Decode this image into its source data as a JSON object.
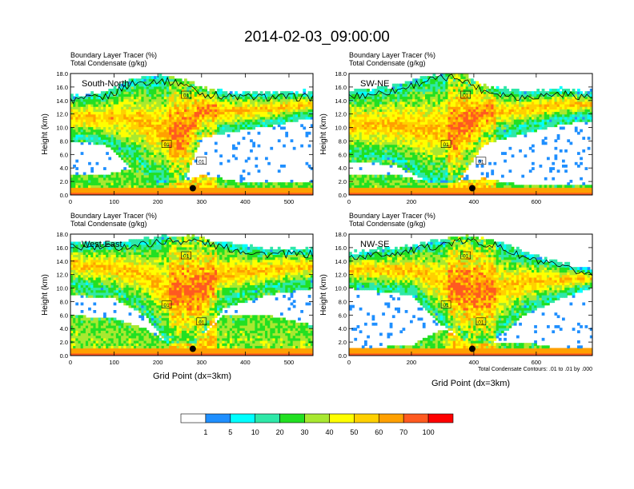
{
  "figure": {
    "title": "2014-02-03_09:00:00",
    "left_string_1": "Boundary Layer Tracer   (%)",
    "left_string_2": "Total Condensate   (g/kg)",
    "contour_note": "Total Condensate Contours: .01 to .01 by .000",
    "xlabel": "Grid Point (dx=3km)",
    "ylabel": "Height (km)",
    "contour_label": "01",
    "colorbar": {
      "labels": [
        "1",
        "5",
        "10",
        "20",
        "30",
        "40",
        "50",
        "60",
        "70",
        "100"
      ],
      "colors": [
        "#ffffff",
        "#1f8fff",
        "#00ffff",
        "#2ee8a8",
        "#22e022",
        "#a8e830",
        "#ffff00",
        "#ffd000",
        "#ffa000",
        "#ff5a20",
        "#ff0000"
      ]
    }
  },
  "chart_data": [
    {
      "type": "heatmap",
      "panel_label": "South-North",
      "xlim": [
        0,
        555
      ],
      "ylim": [
        0,
        18
      ],
      "xticks": [
        0,
        100,
        200,
        300,
        400,
        500
      ],
      "yticks": [
        "0.0",
        "2.0",
        "4.0",
        "6.0",
        "8.0",
        "10.0",
        "12.0",
        "14.0",
        "16.0",
        "18.0"
      ],
      "marker": {
        "x": 280,
        "y": 1.0
      },
      "profile": [
        {
          "x": 0,
          "top": 14.5,
          "anvil": [
            8.5,
            15.5
          ],
          "gap": [
            3.0,
            8.0
          ],
          "low": 3.0
        },
        {
          "x": 80,
          "top": 15.0,
          "anvil": [
            8.0,
            16.0
          ],
          "gap": [
            3.0,
            7.5
          ],
          "low": 3.0
        },
        {
          "x": 140,
          "top": 17.0,
          "anvil": [
            6.0,
            17.0
          ],
          "gap": [
            4.0,
            4.0
          ],
          "low": 4.0
        },
        {
          "x": 200,
          "top": 17.5,
          "anvil": [
            2.0,
            17.5
          ],
          "gap": [
            2.0,
            2.0
          ],
          "low": 2.0
        },
        {
          "x": 260,
          "top": 17.0,
          "anvil": [
            2.0,
            17.0
          ],
          "gap": [
            2.0,
            2.0
          ],
          "low": 2.0
        },
        {
          "x": 300,
          "top": 15.5,
          "anvil": [
            9.5,
            15.5
          ],
          "gap": [
            3.0,
            8.5
          ],
          "low": 3.0
        },
        {
          "x": 380,
          "top": 15.0,
          "anvil": [
            10.0,
            15.0
          ],
          "gap": [
            2.0,
            9.5
          ],
          "low": 2.0
        },
        {
          "x": 480,
          "top": 15.0,
          "anvil": [
            11.0,
            15.0
          ],
          "gap": [
            1.8,
            10.5
          ],
          "low": 1.8
        },
        {
          "x": 555,
          "top": 15.0,
          "anvil": [
            12.0,
            15.0
          ],
          "gap": [
            1.8,
            11.5
          ],
          "low": 1.8
        }
      ]
    },
    {
      "type": "heatmap",
      "panel_label": "SW-NE",
      "xlim": [
        0,
        780
      ],
      "ylim": [
        0,
        18
      ],
      "xticks": [
        0,
        200,
        400,
        600
      ],
      "yticks": [
        "0.0",
        "2.0",
        "4.0",
        "6.0",
        "8.0",
        "10.0",
        "12.0",
        "14.0",
        "16.0",
        "18.0"
      ],
      "marker": {
        "x": 395,
        "y": 1.0
      },
      "profile": [
        {
          "x": 0,
          "top": 15.0,
          "anvil": [
            6.0,
            15.0
          ],
          "gap": [
            3.0,
            5.0
          ],
          "low": 3.0
        },
        {
          "x": 150,
          "top": 16.0,
          "anvil": [
            5.0,
            16.0
          ],
          "gap": [
            3.0,
            4.5
          ],
          "low": 3.0
        },
        {
          "x": 250,
          "top": 17.5,
          "anvil": [
            2.0,
            17.5
          ],
          "gap": [
            2.0,
            2.0
          ],
          "low": 2.0
        },
        {
          "x": 350,
          "top": 18.0,
          "anvil": [
            2.0,
            18.0
          ],
          "gap": [
            2.0,
            2.0
          ],
          "low": 2.0
        },
        {
          "x": 430,
          "top": 16.0,
          "anvil": [
            8.5,
            16.0
          ],
          "gap": [
            2.5,
            7.5
          ],
          "low": 2.5
        },
        {
          "x": 550,
          "top": 15.0,
          "anvil": [
            10.0,
            15.0
          ],
          "gap": [
            1.5,
            9.0
          ],
          "low": 1.5
        },
        {
          "x": 680,
          "top": 15.5,
          "anvil": [
            11.5,
            15.5
          ],
          "gap": [
            1.5,
            10.5
          ],
          "low": 1.5
        },
        {
          "x": 780,
          "top": 15.0,
          "anvil": [
            12.0,
            15.0
          ],
          "gap": [
            1.5,
            11.0
          ],
          "low": 1.5
        }
      ]
    },
    {
      "type": "heatmap",
      "panel_label": "West-East",
      "xlim": [
        0,
        555
      ],
      "ylim": [
        0,
        18
      ],
      "xticks": [
        0,
        100,
        200,
        300,
        400,
        500
      ],
      "yticks": [
        "0.0",
        "2.0",
        "4.0",
        "6.0",
        "8.0",
        "10.0",
        "12.0",
        "14.0",
        "16.0",
        "18.0"
      ],
      "marker": {
        "x": 280,
        "y": 1.0
      },
      "profile": [
        {
          "x": 0,
          "top": 16.5,
          "anvil": [
            10.5,
            16.5
          ],
          "gap": [
            6.0,
            9.0
          ],
          "low": 6.0
        },
        {
          "x": 100,
          "top": 16.5,
          "anvil": [
            9.5,
            16.5
          ],
          "gap": [
            5.5,
            8.5
          ],
          "low": 5.5
        },
        {
          "x": 170,
          "top": 17.0,
          "anvil": [
            7.0,
            17.0
          ],
          "gap": [
            4.0,
            6.0
          ],
          "low": 4.0
        },
        {
          "x": 220,
          "top": 17.5,
          "anvil": [
            2.0,
            17.5
          ],
          "gap": [
            2.0,
            2.0
          ],
          "low": 2.0
        },
        {
          "x": 290,
          "top": 17.5,
          "anvil": [
            2.0,
            17.5
          ],
          "gap": [
            2.0,
            2.0
          ],
          "low": 2.0
        },
        {
          "x": 350,
          "top": 16.5,
          "anvil": [
            8.0,
            16.5
          ],
          "gap": [
            6.0,
            7.0
          ],
          "low": 6.0
        },
        {
          "x": 450,
          "top": 15.5,
          "anvil": [
            10.0,
            15.5
          ],
          "gap": [
            6.0,
            9.0
          ],
          "low": 6.0
        },
        {
          "x": 555,
          "top": 15.5,
          "anvil": [
            11.0,
            15.5
          ],
          "gap": [
            4.5,
            10.0
          ],
          "low": 4.5
        }
      ]
    },
    {
      "type": "heatmap",
      "panel_label": "NW-SE",
      "xlim": [
        0,
        780
      ],
      "ylim": [
        0,
        18
      ],
      "xticks": [
        0,
        200,
        400,
        600
      ],
      "yticks": [
        "0.0",
        "2.0",
        "4.0",
        "6.0",
        "8.0",
        "10.0",
        "12.0",
        "14.0",
        "16.0",
        "18.0"
      ],
      "marker": {
        "x": 395,
        "y": 1.0
      },
      "profile": [
        {
          "x": 0,
          "top": 15.0,
          "anvil": [
            10.5,
            15.0
          ],
          "gap": [
            1.0,
            10.0
          ],
          "low": 1.0
        },
        {
          "x": 200,
          "top": 16.0,
          "anvil": [
            9.5,
            16.0
          ],
          "gap": [
            1.5,
            9.0
          ],
          "low": 1.5
        },
        {
          "x": 300,
          "top": 17.0,
          "anvil": [
            5.0,
            17.0
          ],
          "gap": [
            4.0,
            4.5
          ],
          "low": 4.0
        },
        {
          "x": 380,
          "top": 17.5,
          "anvil": [
            2.0,
            17.5
          ],
          "gap": [
            2.0,
            2.0
          ],
          "low": 2.0
        },
        {
          "x": 460,
          "top": 17.0,
          "anvil": [
            2.0,
            17.0
          ],
          "gap": [
            2.0,
            2.0
          ],
          "low": 2.0
        },
        {
          "x": 560,
          "top": 15.0,
          "anvil": [
            7.0,
            15.0
          ],
          "gap": [
            2.0,
            6.0
          ],
          "low": 2.0
        },
        {
          "x": 680,
          "top": 13.5,
          "anvil": [
            9.0,
            13.5
          ],
          "gap": [
            1.0,
            8.5
          ],
          "low": 1.0
        },
        {
          "x": 780,
          "top": 12.5,
          "anvil": [
            10.5,
            12.5
          ],
          "gap": [
            1.0,
            10.0
          ],
          "low": 1.0
        }
      ]
    }
  ]
}
